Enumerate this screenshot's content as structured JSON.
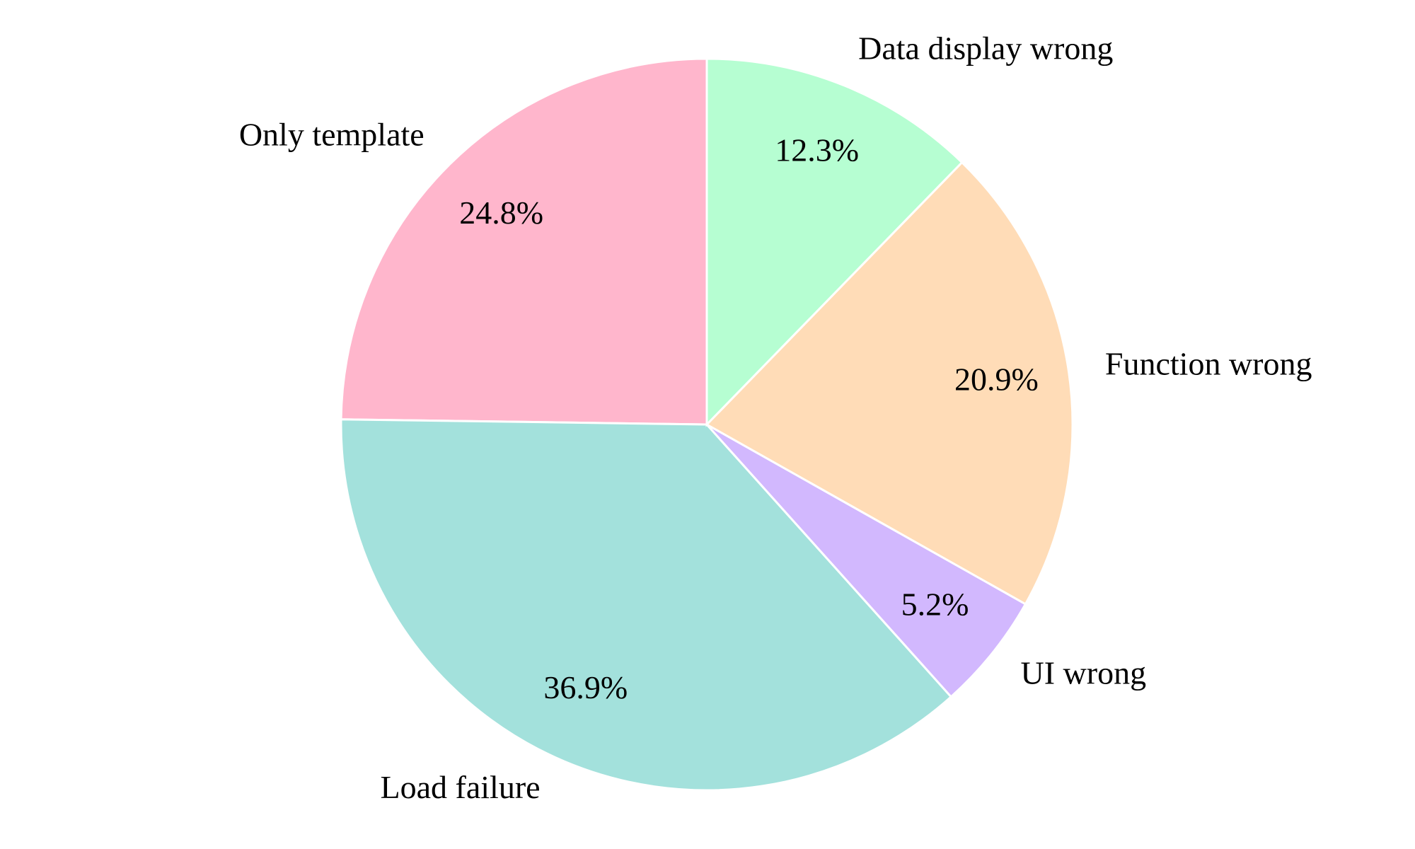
{
  "chart_data": {
    "type": "pie",
    "categories": [
      "Only template",
      "Load failure",
      "UI wrong",
      "Function wrong",
      "Data display wrong"
    ],
    "values": [
      24.8,
      36.9,
      5.2,
      20.9,
      12.3
    ],
    "value_labels": [
      "24.8%",
      "36.9%",
      "5.2%",
      "20.9%",
      "12.3%"
    ],
    "colors": [
      "#ffb6cc",
      "#a3e1dc",
      "#d2b8fe",
      "#ffdcb7",
      "#b6fed2"
    ]
  }
}
